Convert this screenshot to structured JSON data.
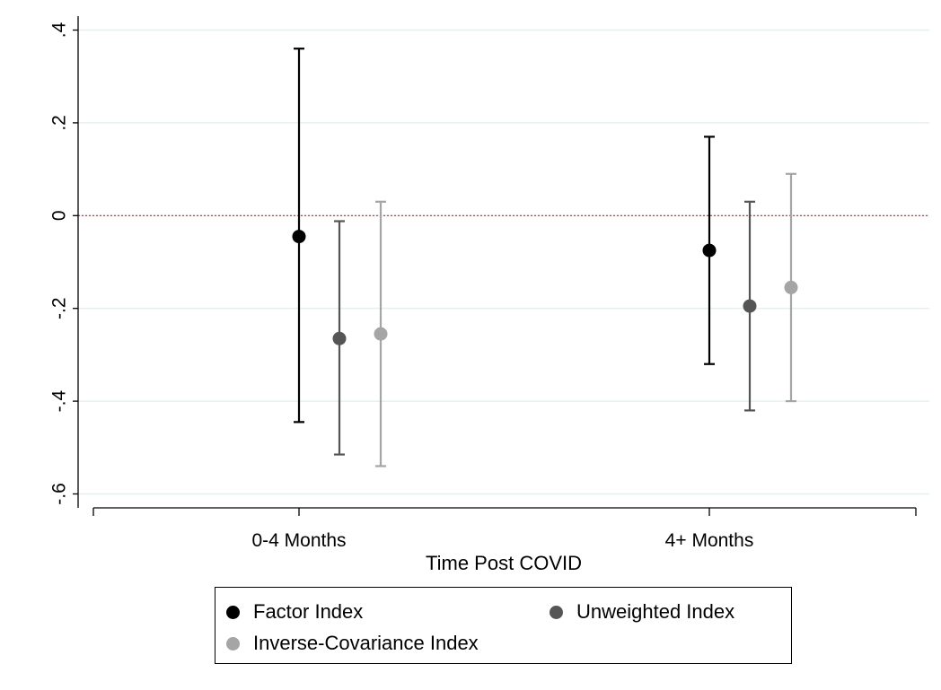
{
  "chart_data": {
    "type": "scatter",
    "subtype": "coefficient plot with 95% confidence intervals",
    "xlabel": "Time Post COVID",
    "ylabel": "",
    "categories": [
      "0-4 Months",
      "4+ Months"
    ],
    "ylim": [
      -0.63,
      0.43
    ],
    "yticks": [
      0.4,
      0.2,
      0,
      -0.2,
      -0.4,
      -0.6
    ],
    "ytick_labels": [
      ".4",
      ".2",
      "0",
      "-.2",
      "-.4",
      "-.6"
    ],
    "reference_line": 0,
    "grid": true,
    "legend_position": "bottom",
    "series": [
      {
        "name": "Factor Index",
        "color": "#000000",
        "points": [
          {
            "category": "0-4 Months",
            "estimate": -0.045,
            "ci_low": -0.445,
            "ci_high": 0.36
          },
          {
            "category": "4+ Months",
            "estimate": -0.075,
            "ci_low": -0.32,
            "ci_high": 0.17
          }
        ]
      },
      {
        "name": "Unweighted Index",
        "color": "#555555",
        "points": [
          {
            "category": "0-4 Months",
            "estimate": -0.265,
            "ci_low": -0.515,
            "ci_high": -0.012
          },
          {
            "category": "4+ Months",
            "estimate": -0.195,
            "ci_low": -0.42,
            "ci_high": 0.03
          }
        ]
      },
      {
        "name": "Inverse-Covariance Index",
        "color": "#a5a5a5",
        "points": [
          {
            "category": "0-4 Months",
            "estimate": -0.255,
            "ci_low": -0.54,
            "ci_high": 0.03
          },
          {
            "category": "4+ Months",
            "estimate": -0.155,
            "ci_low": -0.4,
            "ci_high": 0.09
          }
        ]
      }
    ]
  }
}
